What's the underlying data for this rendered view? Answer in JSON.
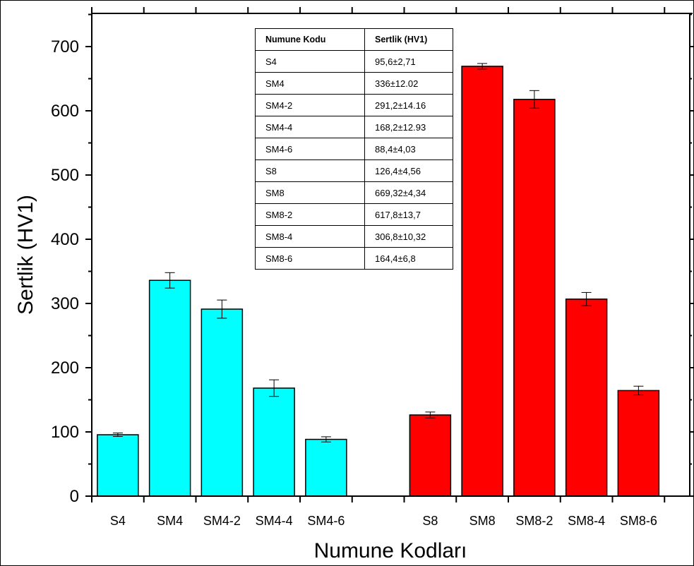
{
  "chart_data": {
    "type": "bar",
    "title": "",
    "xlabel": "Numune Kodları",
    "ylabel": "Sertlik (HV1)",
    "ylim": [
      0,
      750
    ],
    "yticks": [
      0,
      100,
      200,
      300,
      400,
      500,
      600,
      700
    ],
    "categories": [
      "S4",
      "SM4",
      "SM4-2",
      "SM4-4",
      "SM4-6",
      "S8",
      "SM8",
      "SM8-2",
      "SM8-4",
      "SM8-6"
    ],
    "values": [
      95.6,
      336,
      291.2,
      168.2,
      88.4,
      126.4,
      669.32,
      617.8,
      306.8,
      164.4
    ],
    "errors": [
      2.71,
      12.02,
      14.16,
      12.93,
      4.03,
      4.56,
      4.34,
      13.7,
      10.32,
      6.8
    ],
    "groups": [
      {
        "categories": [
          "S4",
          "SM4",
          "SM4-2",
          "SM4-4",
          "SM4-6"
        ],
        "color": "#00FFFF"
      },
      {
        "categories": [
          "S8",
          "SM8",
          "SM8-2",
          "SM8-4",
          "SM8-6"
        ],
        "color": "#FF0000"
      }
    ],
    "grid": false,
    "table": {
      "headers": [
        "Numune Kodu",
        "Sertlik (HV1)"
      ],
      "rows": [
        [
          "S4",
          "95,6±2,71"
        ],
        [
          "SM4",
          "336±12.02"
        ],
        [
          "SM4-2",
          "291,2±14.16"
        ],
        [
          "SM4-4",
          "168,2±12.93"
        ],
        [
          "SM4-6",
          "88,4±4,03"
        ],
        [
          "S8",
          "126,4±4,56"
        ],
        [
          "SM8",
          "669,32±4,34"
        ],
        [
          "SM8-2",
          "617,8±13,7"
        ],
        [
          "SM8-4",
          "306,8±10,32"
        ],
        [
          "SM8-6",
          "164,4±6,8"
        ]
      ]
    }
  }
}
